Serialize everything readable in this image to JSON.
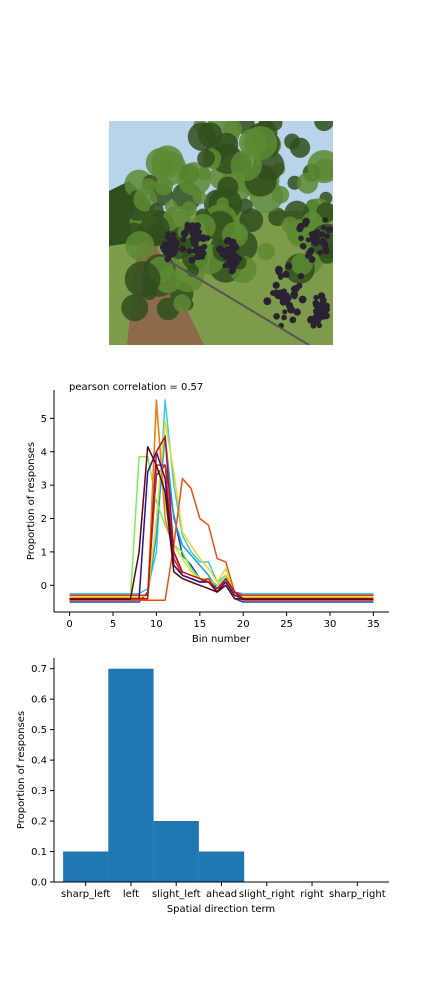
{
  "photo": {
    "icon": "vineyard-grapes-photo",
    "colors": {
      "sky": "#b9d3ea",
      "leaf": "#5d8a34",
      "leaf_dark": "#2f4f1c",
      "grape": "#2a2233",
      "ground": "#8c6a4a",
      "grass": "#7d9b4a"
    }
  },
  "chart_data": [
    {
      "type": "line",
      "title": "pearson correlation = 0.57",
      "xlabel": "Bin number",
      "ylabel": "Proportion of responses",
      "xlim": [
        -1.8,
        36.8
      ],
      "ylim": [
        -0.8,
        5.85
      ],
      "xticks": [
        0,
        5,
        10,
        15,
        20,
        25,
        30,
        35
      ],
      "yticks": [
        0,
        1,
        2,
        3,
        4,
        5
      ],
      "grid": false,
      "x": [
        0,
        1,
        2,
        3,
        4,
        5,
        6,
        7,
        8,
        9,
        10,
        11,
        12,
        13,
        14,
        15,
        16,
        17,
        18,
        19,
        20,
        21,
        22,
        23,
        24,
        25,
        26,
        27,
        28,
        29,
        30,
        31,
        32,
        33,
        34,
        35
      ],
      "series": [
        {
          "color": "#1f3fb0",
          "values": [
            -0.5,
            -0.5,
            -0.5,
            -0.5,
            -0.5,
            -0.5,
            -0.5,
            -0.5,
            -0.5,
            -0.2,
            3.3,
            3.6,
            2.1,
            0.9,
            0.6,
            0.2,
            0.1,
            -0.1,
            0.2,
            -0.4,
            -0.5,
            -0.5,
            -0.5,
            -0.5,
            -0.5,
            -0.5,
            -0.5,
            -0.5,
            -0.5,
            -0.5,
            -0.5,
            -0.5,
            -0.5,
            -0.5,
            -0.5,
            -0.5
          ]
        },
        {
          "color": "#3cc8e8",
          "values": [
            -0.25,
            -0.25,
            -0.25,
            -0.25,
            -0.25,
            -0.25,
            -0.25,
            -0.25,
            -0.25,
            -0.1,
            1.0,
            5.55,
            3.0,
            1.5,
            1.0,
            0.7,
            0.7,
            0.1,
            0.3,
            -0.2,
            -0.25,
            -0.25,
            -0.25,
            -0.25,
            -0.25,
            -0.25,
            -0.25,
            -0.25,
            -0.25,
            -0.25,
            -0.25,
            -0.25,
            -0.25,
            -0.25,
            -0.25,
            -0.25
          ]
        },
        {
          "color": "#19a2d8",
          "values": [
            -0.3,
            -0.3,
            -0.3,
            -0.3,
            -0.3,
            -0.3,
            -0.3,
            -0.3,
            -0.3,
            -0.3,
            1.5,
            4.5,
            2.0,
            1.2,
            0.9,
            0.6,
            0.3,
            -0.1,
            0.1,
            -0.3,
            -0.3,
            -0.3,
            -0.3,
            -0.3,
            -0.3,
            -0.3,
            -0.3,
            -0.3,
            -0.3,
            -0.3,
            -0.3,
            -0.3,
            -0.3,
            -0.3,
            -0.3,
            -0.3
          ]
        },
        {
          "color": "#7aef5a",
          "values": [
            -0.4,
            -0.4,
            -0.4,
            -0.4,
            -0.4,
            -0.4,
            -0.4,
            -0.4,
            3.85,
            3.85,
            2.5,
            1.8,
            1.2,
            1.0,
            0.5,
            0.2,
            0.2,
            0.0,
            0.3,
            -0.3,
            -0.4,
            -0.4,
            -0.4,
            -0.4,
            -0.4,
            -0.4,
            -0.4,
            -0.4,
            -0.4,
            -0.4,
            -0.4,
            -0.4,
            -0.4,
            -0.4,
            -0.4,
            -0.4
          ]
        },
        {
          "color": "#c8ea2a",
          "values": [
            -0.4,
            -0.4,
            -0.4,
            -0.4,
            -0.4,
            -0.4,
            -0.4,
            -0.4,
            -0.4,
            -0.4,
            5.4,
            2.4,
            1.2,
            0.8,
            0.4,
            0.2,
            0.1,
            -0.1,
            0.2,
            -0.4,
            -0.4,
            -0.4,
            -0.4,
            -0.4,
            -0.4,
            -0.4,
            -0.4,
            -0.4,
            -0.4,
            -0.4,
            -0.4,
            -0.4,
            -0.4,
            -0.4,
            -0.4,
            -0.4
          ]
        },
        {
          "color": "#f0d820",
          "values": [
            -0.35,
            -0.35,
            -0.35,
            -0.35,
            -0.35,
            -0.35,
            -0.35,
            -0.35,
            -0.35,
            -0.3,
            2.0,
            4.9,
            3.4,
            1.6,
            1.2,
            0.8,
            0.5,
            0.1,
            0.5,
            -0.3,
            -0.35,
            -0.35,
            -0.35,
            -0.35,
            -0.35,
            -0.35,
            -0.35,
            -0.35,
            -0.35,
            -0.35,
            -0.35,
            -0.35,
            -0.35,
            -0.35,
            -0.35,
            -0.35
          ]
        },
        {
          "color": "#f07a20",
          "values": [
            -0.4,
            -0.4,
            -0.4,
            -0.4,
            -0.4,
            -0.4,
            -0.4,
            -0.4,
            -0.4,
            -0.4,
            5.55,
            2.0,
            1.0,
            0.3,
            0.2,
            0.1,
            0.1,
            -0.2,
            0.0,
            -0.4,
            -0.4,
            -0.4,
            -0.4,
            -0.4,
            -0.4,
            -0.4,
            -0.4,
            -0.4,
            -0.4,
            -0.4,
            -0.4,
            -0.4,
            -0.4,
            -0.4,
            -0.4,
            -0.4
          ]
        },
        {
          "color": "#e8521a",
          "values": [
            -0.45,
            -0.45,
            -0.45,
            -0.45,
            -0.45,
            -0.45,
            -0.45,
            -0.45,
            -0.45,
            -0.45,
            -0.45,
            -0.45,
            1.2,
            3.2,
            2.9,
            2.0,
            1.8,
            0.8,
            0.7,
            -0.2,
            -0.45,
            -0.45,
            -0.45,
            -0.45,
            -0.45,
            -0.45,
            -0.45,
            -0.45,
            -0.45,
            -0.45,
            -0.45,
            -0.45,
            -0.45,
            -0.45,
            -0.45,
            -0.45
          ]
        },
        {
          "color": "#e02a14",
          "values": [
            -0.3,
            -0.3,
            -0.3,
            -0.3,
            -0.3,
            -0.3,
            -0.3,
            -0.3,
            -0.3,
            -0.3,
            3.6,
            3.6,
            0.8,
            0.3,
            0.2,
            0.1,
            0.2,
            -0.2,
            0.2,
            -0.2,
            -0.3,
            -0.3,
            -0.3,
            -0.3,
            -0.3,
            -0.3,
            -0.3,
            -0.3,
            -0.3,
            -0.3,
            -0.3,
            -0.3,
            -0.3,
            -0.3,
            -0.3,
            -0.3
          ]
        },
        {
          "color": "#2b0fa0",
          "values": [
            -0.4,
            -0.4,
            -0.4,
            -0.4,
            -0.4,
            -0.4,
            -0.4,
            -0.4,
            -0.4,
            3.4,
            4.0,
            3.2,
            0.6,
            0.3,
            0.2,
            0.1,
            0.1,
            -0.2,
            0.1,
            -0.3,
            -0.4,
            -0.4,
            -0.4,
            -0.4,
            -0.4,
            -0.4,
            -0.4,
            -0.4,
            -0.4,
            -0.4,
            -0.4,
            -0.4,
            -0.4,
            -0.4,
            -0.4,
            -0.4
          ]
        },
        {
          "color": "#c01010",
          "values": [
            -0.4,
            -0.4,
            -0.4,
            -0.4,
            -0.4,
            -0.4,
            -0.4,
            -0.4,
            -0.4,
            -0.4,
            4.0,
            4.45,
            1.0,
            0.4,
            0.3,
            0.2,
            0.1,
            -0.1,
            0.2,
            -0.2,
            -0.4,
            -0.4,
            -0.4,
            -0.4,
            -0.4,
            -0.4,
            -0.4,
            -0.4,
            -0.4,
            -0.4,
            -0.4,
            -0.4,
            -0.4,
            -0.4,
            -0.4,
            -0.4
          ]
        },
        {
          "color": "#5a0a0a",
          "values": [
            -0.42,
            -0.42,
            -0.42,
            -0.42,
            -0.42,
            -0.42,
            -0.42,
            -0.42,
            1.0,
            4.15,
            3.6,
            2.8,
            0.4,
            0.2,
            0.1,
            0.0,
            -0.1,
            -0.2,
            0.0,
            -0.4,
            -0.42,
            -0.42,
            -0.42,
            -0.42,
            -0.42,
            -0.42,
            -0.42,
            -0.42,
            -0.42,
            -0.42,
            -0.42,
            -0.42,
            -0.42,
            -0.42,
            -0.42,
            -0.42
          ]
        }
      ]
    },
    {
      "type": "bar",
      "xlabel": "Spatial direction term",
      "ylabel": "Proportion of responses",
      "categories": [
        "sharp_left",
        "left",
        "slight_left",
        "ahead",
        "slight_right",
        "right",
        "sharp_right"
      ],
      "values": [
        0.1,
        0.7,
        0.2,
        0.1,
        0.0,
        0.0,
        0.0
      ],
      "ylim": [
        0,
        0.735
      ],
      "yticks": [
        "0.0",
        "0.1",
        "0.2",
        "0.3",
        "0.4",
        "0.5",
        "0.6",
        "0.7"
      ],
      "color": "#1f77b4",
      "grid": false
    }
  ]
}
